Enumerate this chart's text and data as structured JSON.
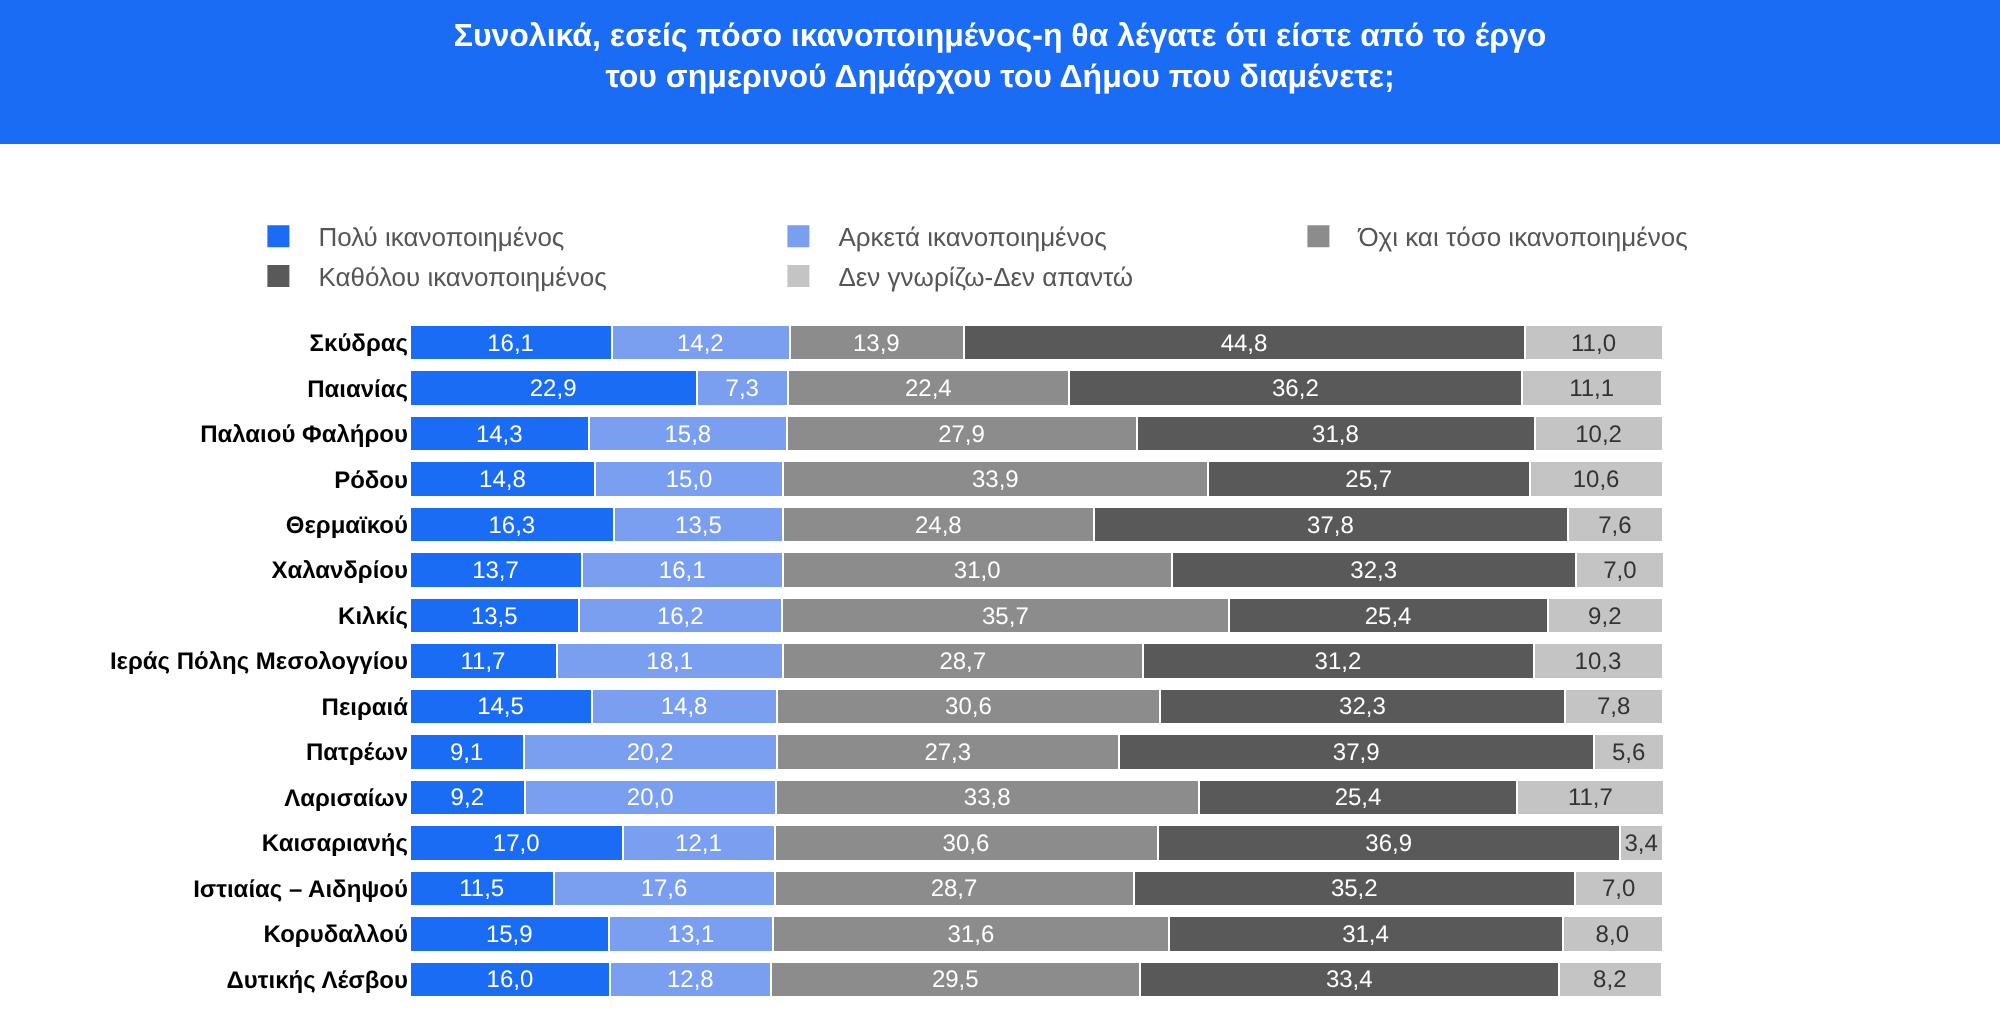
{
  "chart_data": {
    "type": "bar",
    "orientation": "horizontal",
    "stacked": true,
    "legend": "top",
    "tick_labels": "y",
    "title": "Συνολικά, εσείς πόσο ικανοποιημένος-η θα λέγατε ότι είστε από το έργο\nτου σημερινού Δημάρχου του Δήμου που διαμένετε;",
    "categories": [
      "Σκύδρας",
      "Παιανίας",
      "Παλαιού Φαλήρου",
      "Ρόδου",
      "Θερμαϊκού",
      "Χαλανδρίου",
      "Κιλκίς",
      "Ιεράς Πόλης Μεσολογγίου",
      "Πειραιά",
      "Πατρέων",
      "Λαρισαίων",
      "Καισαριανής",
      "Ιστιαίας – Αιδηψού",
      "Κορυδαλλού",
      "Δυτικής Λέσβου"
    ],
    "series": [
      {
        "name": "Πολύ ικανοποιημένος",
        "color": "#1a6cf5",
        "values": [
          16.1,
          22.9,
          14.3,
          14.8,
          16.3,
          13.7,
          13.5,
          11.7,
          14.5,
          9.1,
          9.2,
          17.0,
          11.5,
          15.9,
          16.0
        ],
        "value_labels": [
          "16,1",
          "22,9",
          "14,3",
          "14,8",
          "16,3",
          "13,7",
          "13,5",
          "11,7",
          "14,5",
          "9,1",
          "9,2",
          "17,0",
          "11,5",
          "15,9",
          "16,0"
        ]
      },
      {
        "name": "Αρκετά ικανοποιημένος",
        "color": "#7a9ef0",
        "values": [
          14.2,
          7.3,
          15.8,
          15.0,
          13.5,
          16.1,
          16.2,
          18.1,
          14.8,
          20.2,
          20.0,
          12.1,
          17.6,
          13.1,
          12.8
        ],
        "value_labels": [
          "14,2",
          "7,3",
          "15,8",
          "15,0",
          "13,5",
          "16,1",
          "16,2",
          "18,1",
          "14,8",
          "20,2",
          "20,0",
          "12,1",
          "17,6",
          "13,1",
          "12,8"
        ]
      },
      {
        "name": "Όχι και τόσο ικανοποιημένος",
        "color": "#8c8c8c",
        "values": [
          13.9,
          22.4,
          27.9,
          33.9,
          24.8,
          31.0,
          35.7,
          28.7,
          30.6,
          27.3,
          33.8,
          30.6,
          28.7,
          31.6,
          29.5
        ],
        "value_labels": [
          "13,9",
          "22,4",
          "27,9",
          "33,9",
          "24,8",
          "31,0",
          "35,7",
          "28,7",
          "30,6",
          "27,3",
          "33,8",
          "30,6",
          "28,7",
          "31,6",
          "29,5"
        ]
      },
      {
        "name": "Καθόλου ικανοποιημένος",
        "color": "#595959",
        "values": [
          44.8,
          36.2,
          31.8,
          25.7,
          37.8,
          32.3,
          25.4,
          31.2,
          32.3,
          37.9,
          25.4,
          36.9,
          35.2,
          31.4,
          33.4
        ],
        "value_labels": [
          "44,8",
          "36,2",
          "31,8",
          "25,7",
          "37,8",
          "32,3",
          "25,4",
          "31,2",
          "32,3",
          "37,9",
          "25,4",
          "36,9",
          "35,2",
          "31,4",
          "33,4"
        ]
      },
      {
        "name": "Δεν γνωρίζω-Δεν απαντώ",
        "color": "#c4c4c4",
        "values": [
          11.0,
          11.1,
          10.2,
          10.6,
          7.6,
          7.0,
          9.2,
          10.3,
          7.8,
          5.6,
          11.7,
          3.4,
          7.0,
          8.0,
          8.2
        ],
        "value_labels": [
          "11,0",
          "11,1",
          "10,2",
          "10,6",
          "7,6",
          "7,0",
          "9,2",
          "10,3",
          "7,8",
          "5,6",
          "11,7",
          "3,4",
          "7,0",
          "8,0",
          "8,2"
        ]
      }
    ]
  }
}
